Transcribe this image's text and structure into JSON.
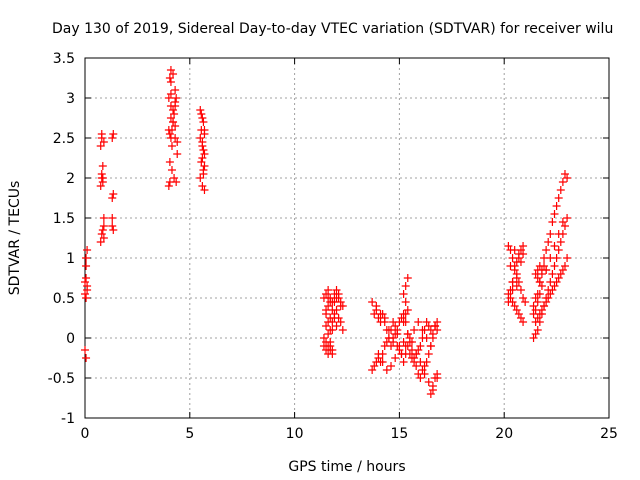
{
  "chart_data": {
    "type": "scatter",
    "title": "Day 130 of 2019, Sidereal Day-to-day VTEC variation (SDTVAR) for receiver wilu",
    "xlabel": "GPS time / hours",
    "ylabel": "SDTVAR / TECUs",
    "xlim": [
      0,
      25
    ],
    "ylim": [
      -1,
      3.5
    ],
    "xticks": [
      "0",
      "5",
      "10",
      "15",
      "20",
      "25"
    ],
    "yticks": [
      "-1",
      "-0.5",
      "0",
      "0.5",
      "1",
      "1.5",
      "2",
      "2.5",
      "3",
      "3.5"
    ],
    "grid": true,
    "marker": "+",
    "color": "#ff0000",
    "series": [
      {
        "name": "SDTVAR",
        "x": [
          0.0,
          0.05,
          0.1,
          0.0,
          0.05,
          0.1,
          0.05,
          0.05,
          0.1,
          0.0,
          0.05,
          0.75,
          0.8,
          0.85,
          0.75,
          0.8,
          0.9,
          0.75,
          0.8,
          0.85,
          0.9,
          0.8,
          0.85,
          0.8,
          0.9,
          0.9,
          0.85,
          1.3,
          1.35,
          1.3,
          1.35,
          1.3,
          1.35,
          1.3,
          4.0,
          4.05,
          4.1,
          4.15,
          4.2,
          4.25,
          4.3,
          4.35,
          4.1,
          4.2,
          4.3,
          4.0,
          4.1,
          4.2,
          4.3,
          4.4,
          4.05,
          4.15,
          4.25,
          4.35,
          4.0,
          4.05,
          4.1,
          4.2,
          4.3,
          4.4,
          4.1,
          4.3,
          4.05,
          4.1,
          4.15,
          5.5,
          5.55,
          5.6,
          5.65,
          5.7,
          5.5,
          5.6,
          5.7,
          5.55,
          5.65,
          5.5,
          5.6,
          5.7,
          5.55,
          5.65,
          5.6,
          5.7,
          5.65,
          5.6,
          5.7,
          11.4,
          11.5,
          11.6,
          11.7,
          11.8,
          11.9,
          12.0,
          12.1,
          12.2,
          12.3,
          11.5,
          11.6,
          11.7,
          11.8,
          11.9,
          12.0,
          12.1,
          12.2,
          11.4,
          11.5,
          11.6,
          11.7,
          11.8,
          11.9,
          12.0,
          12.1,
          12.2,
          12.3,
          11.5,
          11.6,
          11.7,
          11.8,
          11.9,
          12.0,
          11.4,
          11.5,
          11.6,
          11.7,
          11.8,
          11.5,
          11.6,
          11.7,
          11.8,
          11.6,
          11.7,
          13.7,
          13.8,
          13.9,
          14.0,
          14.1,
          14.2,
          14.3,
          14.4,
          14.5,
          14.6,
          14.7,
          14.8,
          14.9,
          15.0,
          15.1,
          15.2,
          15.3,
          15.4,
          15.5,
          15.6,
          15.7,
          15.8,
          15.9,
          16.0,
          16.1,
          16.2,
          16.3,
          16.4,
          16.5,
          16.6,
          16.7,
          16.8,
          13.8,
          13.9,
          14.0,
          14.1,
          14.2,
          14.3,
          14.4,
          14.5,
          14.6,
          14.7,
          14.8,
          14.9,
          15.0,
          15.1,
          15.2,
          15.3,
          15.4,
          15.5,
          15.6,
          15.7,
          15.8,
          15.9,
          16.0,
          16.1,
          16.2,
          16.3,
          16.4,
          16.5,
          16.6,
          13.7,
          13.9,
          14.1,
          14.3,
          14.5,
          14.7,
          14.9,
          15.1,
          15.3,
          15.5,
          15.7,
          15.9,
          16.1,
          16.3,
          16.5,
          16.7,
          14.0,
          14.2,
          14.4,
          14.6,
          14.8,
          15.0,
          15.2,
          15.4,
          15.6,
          15.8,
          16.0,
          16.2,
          16.4,
          16.6,
          16.8,
          15.4,
          15.3,
          15.2,
          15.3,
          15.4,
          15.2,
          15.3,
          16.5,
          16.6,
          16.7,
          16.8,
          16.7,
          16.8,
          20.2,
          20.3,
          20.4,
          20.5,
          20.6,
          20.7,
          20.8,
          20.9,
          21.0,
          20.3,
          20.4,
          20.5,
          20.6,
          20.7,
          20.8,
          20.9,
          20.2,
          20.3,
          20.4,
          20.5,
          20.6,
          20.7,
          20.8,
          20.9,
          20.4,
          20.6,
          20.8,
          20.3,
          20.5,
          20.7,
          20.9,
          20.2,
          20.4,
          20.6,
          21.4,
          21.5,
          21.6,
          21.7,
          21.8,
          21.9,
          22.0,
          22.1,
          22.2,
          22.3,
          22.4,
          22.5,
          22.6,
          22.7,
          22.8,
          22.9,
          23.0,
          21.5,
          21.6,
          21.7,
          21.8,
          21.9,
          22.0,
          22.1,
          22.2,
          22.3,
          22.4,
          22.5,
          22.6,
          22.7,
          22.8,
          22.9,
          23.0,
          21.4,
          21.5,
          21.6,
          21.7,
          21.8,
          21.9,
          22.0,
          22.1,
          22.2,
          22.3,
          22.4,
          22.5,
          22.6,
          22.7,
          22.8,
          22.9,
          21.6,
          21.7,
          21.8,
          21.9,
          22.0,
          21.5,
          21.6,
          21.7,
          21.4,
          21.5,
          21.6,
          21.7,
          21.8,
          22.0,
          22.2,
          22.4,
          22.6,
          22.8,
          23.0
        ],
        "y": [
          0.7,
          0.75,
          0.65,
          0.55,
          0.5,
          0.6,
          0.9,
          1.0,
          1.1,
          -0.15,
          -0.25,
          1.9,
          2.0,
          1.95,
          2.4,
          2.5,
          2.45,
          1.2,
          1.3,
          1.35,
          1.25,
          2.55,
          2.15,
          2.05,
          1.5,
          1.4,
          2.0,
          1.75,
          1.8,
          2.5,
          2.55,
          1.4,
          1.35,
          1.5,
          1.9,
          1.95,
          2.5,
          2.6,
          2.7,
          2.8,
          2.9,
          3.0,
          3.35,
          3.3,
          3.1,
          3.0,
          2.9,
          2.7,
          2.5,
          2.3,
          2.2,
          2.1,
          2.0,
          1.95,
          2.6,
          2.55,
          2.75,
          2.85,
          2.65,
          2.45,
          3.05,
          2.95,
          3.25,
          3.2,
          2.4,
          2.85,
          2.8,
          2.75,
          2.7,
          2.6,
          2.5,
          2.4,
          2.3,
          2.2,
          2.1,
          2.0,
          1.9,
          1.85,
          2.6,
          2.35,
          2.45,
          2.15,
          2.05,
          2.25,
          2.55,
          0.5,
          0.55,
          0.6,
          0.5,
          0.45,
          0.55,
          0.6,
          0.5,
          0.45,
          0.4,
          0.3,
          0.2,
          0.1,
          0.35,
          0.45,
          0.5,
          0.55,
          0.4,
          0.0,
          -0.05,
          -0.1,
          -0.15,
          -0.2,
          0.3,
          0.35,
          0.25,
          0.2,
          0.1,
          0.15,
          0.05,
          -0.05,
          0.2,
          0.25,
          0.15,
          -0.1,
          -0.15,
          -0.2,
          -0.1,
          -0.15,
          0.35,
          0.4,
          0.25,
          0.1,
          0.5,
          0.45,
          -0.4,
          -0.35,
          -0.3,
          -0.25,
          -0.3,
          -0.2,
          -0.1,
          -0.05,
          0.0,
          0.1,
          0.2,
          0.15,
          0.05,
          -0.1,
          -0.2,
          -0.3,
          -0.2,
          -0.1,
          -0.2,
          -0.25,
          -0.3,
          -0.2,
          -0.15,
          -0.1,
          0.0,
          0.1,
          0.2,
          0.15,
          0.1,
          0.05,
          0.15,
          0.2,
          0.3,
          0.35,
          0.25,
          0.2,
          0.3,
          0.25,
          0.1,
          0.0,
          -0.1,
          -0.05,
          0.05,
          0.1,
          0.2,
          0.25,
          0.3,
          0.2,
          0.05,
          -0.05,
          -0.15,
          -0.25,
          -0.35,
          -0.45,
          -0.5,
          -0.4,
          -0.35,
          -0.3,
          -0.2,
          -0.1,
          0.0,
          0.45,
          0.4,
          0.3,
          0.2,
          0.1,
          0.0,
          -0.1,
          -0.2,
          -0.1,
          0.0,
          0.1,
          0.2,
          0.1,
          0.0,
          -0.1,
          0.15,
          -0.2,
          -0.3,
          -0.4,
          -0.35,
          -0.25,
          -0.15,
          -0.05,
          0.05,
          -0.05,
          -0.2,
          -0.3,
          -0.45,
          -0.55,
          -0.6,
          -0.5,
          0.75,
          0.65,
          0.55,
          0.45,
          0.35,
          0.2,
          0.3,
          -0.7,
          -0.65,
          -0.5,
          -0.45,
          0.15,
          0.1,
          1.15,
          1.1,
          1.0,
          0.9,
          0.8,
          0.7,
          0.6,
          0.5,
          0.45,
          0.5,
          0.45,
          0.4,
          0.35,
          0.3,
          0.25,
          0.2,
          0.55,
          0.6,
          0.7,
          0.85,
          0.95,
          1.05,
          1.1,
          1.15,
          0.6,
          0.75,
          0.95,
          0.9,
          1.1,
          1.0,
          1.05,
          0.45,
          0.7,
          0.65,
          0.0,
          0.05,
          0.1,
          0.2,
          0.3,
          0.4,
          0.5,
          0.6,
          0.7,
          0.8,
          0.9,
          1.0,
          1.1,
          1.2,
          1.3,
          1.4,
          1.5,
          0.2,
          0.25,
          0.3,
          0.35,
          0.4,
          0.45,
          0.5,
          0.55,
          0.6,
          0.65,
          0.7,
          0.75,
          0.8,
          0.85,
          0.9,
          1.0,
          0.4,
          0.5,
          0.55,
          0.7,
          0.8,
          1.0,
          1.1,
          1.2,
          1.3,
          1.45,
          1.55,
          1.65,
          1.75,
          1.85,
          1.95,
          2.05,
          0.85,
          0.9,
          0.85,
          0.9,
          0.85,
          0.8,
          0.75,
          0.7,
          0.3,
          0.35,
          0.45,
          0.55,
          0.65,
          0.85,
          1.0,
          1.15,
          1.3,
          1.45,
          2.0
        ]
      }
    ]
  }
}
